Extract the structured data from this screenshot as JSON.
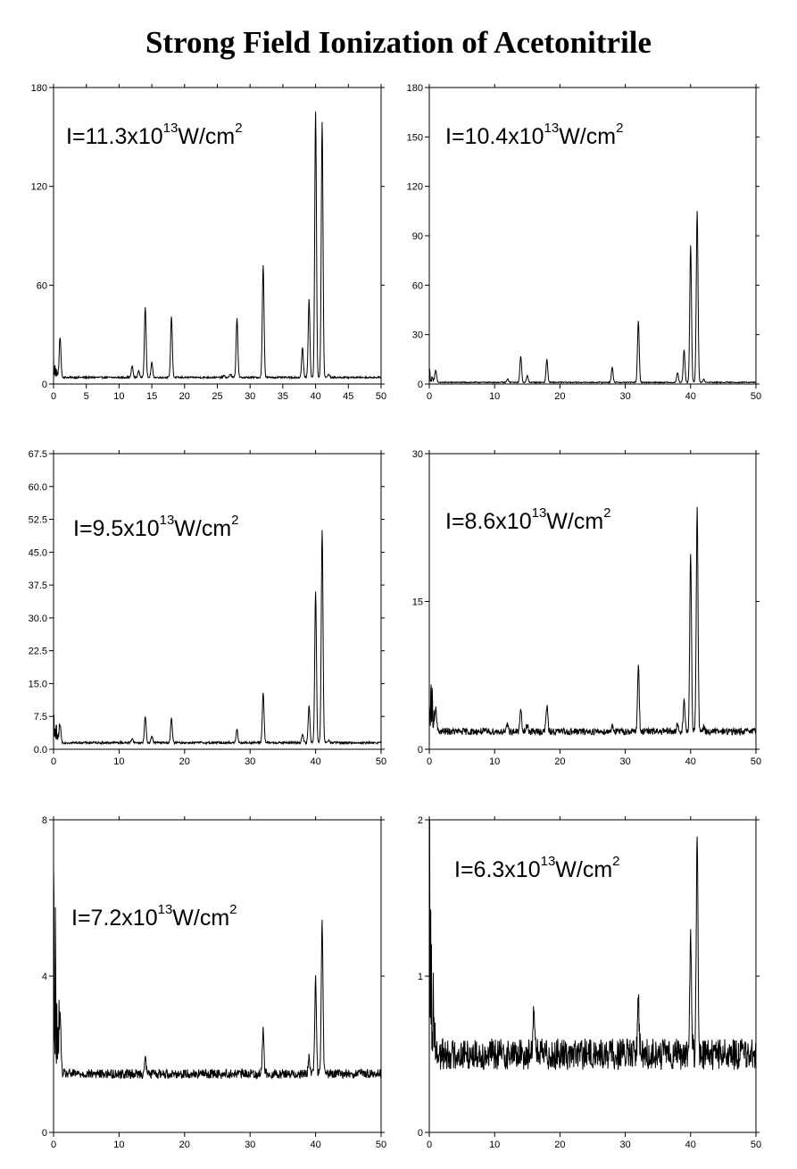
{
  "title": "Strong Field Ionization of Acetonitrile",
  "chart_data": [
    {
      "type": "line",
      "panel": "top-left",
      "annotation": {
        "prefix": "I=11.3x10",
        "exponent": "13",
        "unit": "W/cm",
        "unit_exponent": "2"
      },
      "xlim": [
        0,
        50
      ],
      "ylim": [
        0,
        180
      ],
      "xticks": [
        "0",
        "5",
        "10",
        "15",
        "20",
        "25",
        "30",
        "35",
        "40",
        "45",
        "50"
      ],
      "yticks": [
        "0",
        "60",
        "120",
        "180"
      ],
      "baseline": 4,
      "noise": 0.5,
      "low_mass_spike": 15,
      "peaks": [
        [
          1.0,
          28
        ],
        [
          12.0,
          11
        ],
        [
          13.0,
          8
        ],
        [
          14.0,
          47
        ],
        [
          15.0,
          13
        ],
        [
          18.0,
          41
        ],
        [
          26.0,
          5
        ],
        [
          27.0,
          6
        ],
        [
          28.0,
          40
        ],
        [
          32.0,
          72
        ],
        [
          38.0,
          22
        ],
        [
          39.0,
          51
        ],
        [
          40.0,
          165
        ],
        [
          41.0,
          159
        ],
        [
          42.0,
          6
        ]
      ]
    },
    {
      "type": "line",
      "panel": "top-right",
      "annotation": {
        "prefix": "I=10.4x10",
        "exponent": "13",
        "unit": "W/cm",
        "unit_exponent": "2"
      },
      "xlim": [
        0,
        50
      ],
      "ylim": [
        0,
        180
      ],
      "xticks": [
        "0",
        "10",
        "20",
        "30",
        "40",
        "50"
      ],
      "yticks": [
        "0",
        "30",
        "60",
        "90",
        "120",
        "150",
        "180"
      ],
      "baseline": 1,
      "noise": 0.3,
      "low_mass_spike": 10,
      "peaks": [
        [
          1.0,
          8
        ],
        [
          12.0,
          3
        ],
        [
          14.0,
          17
        ],
        [
          15.0,
          5
        ],
        [
          18.0,
          15
        ],
        [
          28.0,
          10
        ],
        [
          32.0,
          38
        ],
        [
          38.0,
          7
        ],
        [
          39.0,
          21
        ],
        [
          40.0,
          84
        ],
        [
          41.0,
          105
        ],
        [
          42.0,
          3
        ]
      ]
    },
    {
      "type": "line",
      "panel": "middle-left",
      "annotation": {
        "prefix": "I=9.5x10",
        "exponent": "13",
        "unit": "W/cm",
        "unit_exponent": "2"
      },
      "xlim": [
        0,
        50
      ],
      "ylim": [
        0,
        67.5
      ],
      "xticks": [
        "0",
        "10",
        "20",
        "30",
        "40",
        "50"
      ],
      "yticks": [
        "0.0",
        "7.5",
        "15.0",
        "22.5",
        "30.0",
        "37.5",
        "45.0",
        "52.5",
        "60.0",
        "67.5"
      ],
      "baseline": 1.5,
      "noise": 0.25,
      "low_mass_spike": 12,
      "peaks": [
        [
          1.0,
          5.5
        ],
        [
          12.0,
          2.5
        ],
        [
          14.0,
          7.5
        ],
        [
          15.0,
          3
        ],
        [
          18.0,
          7
        ],
        [
          28.0,
          4.5
        ],
        [
          32.0,
          13
        ],
        [
          38.0,
          3.5
        ],
        [
          39.0,
          10
        ],
        [
          40.0,
          36
        ],
        [
          41.0,
          50
        ],
        [
          42.0,
          2
        ]
      ]
    },
    {
      "type": "line",
      "panel": "middle-right",
      "annotation": {
        "prefix": "I=8.6x10",
        "exponent": "13",
        "unit": "W/cm",
        "unit_exponent": "2"
      },
      "xlim": [
        0,
        50
      ],
      "ylim": [
        0,
        30
      ],
      "xticks": [
        "0",
        "10",
        "20",
        "30",
        "40",
        "50"
      ],
      "yticks": [
        "0",
        "15",
        "30"
      ],
      "baseline": 1.8,
      "noise": 0.35,
      "low_mass_spike": 13,
      "peaks": [
        [
          1.0,
          4
        ],
        [
          12.0,
          2.5
        ],
        [
          14.0,
          4
        ],
        [
          15.0,
          2.5
        ],
        [
          18.0,
          4.5
        ],
        [
          28.0,
          2.5
        ],
        [
          32.0,
          8.5
        ],
        [
          38.0,
          2.5
        ],
        [
          39.0,
          5
        ],
        [
          40.0,
          20
        ],
        [
          41.0,
          24.5
        ],
        [
          42.0,
          2.3
        ]
      ]
    },
    {
      "type": "line",
      "panel": "bottom-left",
      "annotation": {
        "prefix": "I=7.2x10",
        "exponent": "13",
        "unit": "W/cm",
        "unit_exponent": "2"
      },
      "xlim": [
        0,
        50
      ],
      "ylim": [
        0,
        8
      ],
      "xticks": [
        "0",
        "10",
        "20",
        "30",
        "40",
        "50"
      ],
      "yticks": [
        "0",
        "4",
        "8"
      ],
      "baseline": 1.5,
      "noise": 0.12,
      "low_mass_spike": 8,
      "peaks": [
        [
          1.0,
          3
        ],
        [
          14.0,
          1.9
        ],
        [
          32.0,
          2.6
        ],
        [
          39.0,
          1.9
        ],
        [
          40.0,
          3.9
        ],
        [
          41.0,
          5.4
        ]
      ]
    },
    {
      "type": "line",
      "panel": "bottom-right",
      "annotation": {
        "prefix": "I=6.3x10",
        "exponent": "13",
        "unit": "W/cm",
        "unit_exponent": "2"
      },
      "xlim": [
        0,
        50
      ],
      "ylim": [
        0,
        2
      ],
      "xticks": [
        "0",
        "10",
        "20",
        "30",
        "40",
        "50"
      ],
      "yticks": [
        "0",
        "1",
        "2"
      ],
      "baseline": 0.5,
      "noise": 0.1,
      "low_mass_spike": 2,
      "peaks": [
        [
          16.0,
          0.85
        ],
        [
          32.0,
          0.85
        ],
        [
          40.0,
          1.25
        ],
        [
          41.0,
          1.85
        ]
      ]
    }
  ]
}
